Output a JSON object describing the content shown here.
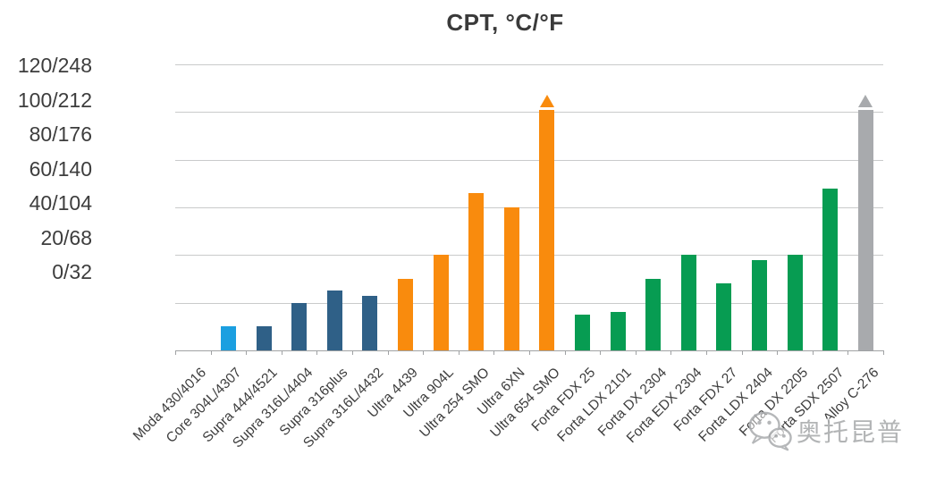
{
  "chart_data": {
    "type": "bar",
    "title": "CPT, °C/°F",
    "xlabel": "",
    "ylabel": "",
    "ylim": [
      0,
      120
    ],
    "grid_step": 20,
    "grid": true,
    "legend": false,
    "y_tick_labels": [
      "120/248",
      "100/212",
      "80/176",
      "60/140",
      "40/104",
      "20/68",
      "0/32"
    ],
    "bars": [
      {
        "label": "Moda 430/4016",
        "value": 0,
        "color_key": "none",
        "arrow": false
      },
      {
        "label": "Core 304L/4307",
        "value": 10,
        "color_key": "light_blue",
        "arrow": false
      },
      {
        "label": "Supra 444/4521",
        "value": 10,
        "color_key": "dark_blue",
        "arrow": false
      },
      {
        "label": "Supra 316L/4404",
        "value": 20,
        "color_key": "dark_blue",
        "arrow": false
      },
      {
        "label": "Supra 316plus",
        "value": 25,
        "color_key": "dark_blue",
        "arrow": false
      },
      {
        "label": "Supra 316L/4432",
        "value": 23,
        "color_key": "dark_blue",
        "arrow": false
      },
      {
        "label": "Ultra 4439",
        "value": 30,
        "color_key": "orange",
        "arrow": false
      },
      {
        "label": "Ultra 904L",
        "value": 40,
        "color_key": "orange",
        "arrow": false
      },
      {
        "label": "Ultra 254 SMO",
        "value": 66,
        "color_key": "orange",
        "arrow": false
      },
      {
        "label": "Ultra 6XN",
        "value": 60,
        "color_key": "orange",
        "arrow": false
      },
      {
        "label": "Ultra 654 SMO",
        "value": 101,
        "color_key": "orange",
        "arrow": true
      },
      {
        "label": "Forta FDX 25",
        "value": 15,
        "color_key": "green",
        "arrow": false
      },
      {
        "label": "Forta LDX 2101",
        "value": 16,
        "color_key": "green",
        "arrow": false
      },
      {
        "label": "Forta DX 2304",
        "value": 30,
        "color_key": "green",
        "arrow": false
      },
      {
        "label": "Forta EDX 2304",
        "value": 40,
        "color_key": "green",
        "arrow": false
      },
      {
        "label": "Forta FDX 27",
        "value": 28,
        "color_key": "green",
        "arrow": false
      },
      {
        "label": "Forta LDX 2404",
        "value": 38,
        "color_key": "green",
        "arrow": false
      },
      {
        "label": "Forta DX 2205",
        "value": 40,
        "color_key": "green",
        "arrow": false
      },
      {
        "label": "Forta SDX 2507",
        "value": 68,
        "color_key": "green",
        "arrow": false
      },
      {
        "label": "Alloy C-276",
        "value": 101,
        "color_key": "gray",
        "arrow": true
      }
    ]
  },
  "colors": {
    "light_blue": "#1b9fe0",
    "dark_blue": "#2f6087",
    "orange": "#f98b0d",
    "green": "#079c52",
    "gray": "#a8aaad",
    "grid": "#c9cacb",
    "axis": "#a0a2a4",
    "text": "#3d3d3d",
    "watermark": "#aaacae"
  },
  "watermark": {
    "icon": "wechat-icon",
    "text": "奥托昆普"
  }
}
